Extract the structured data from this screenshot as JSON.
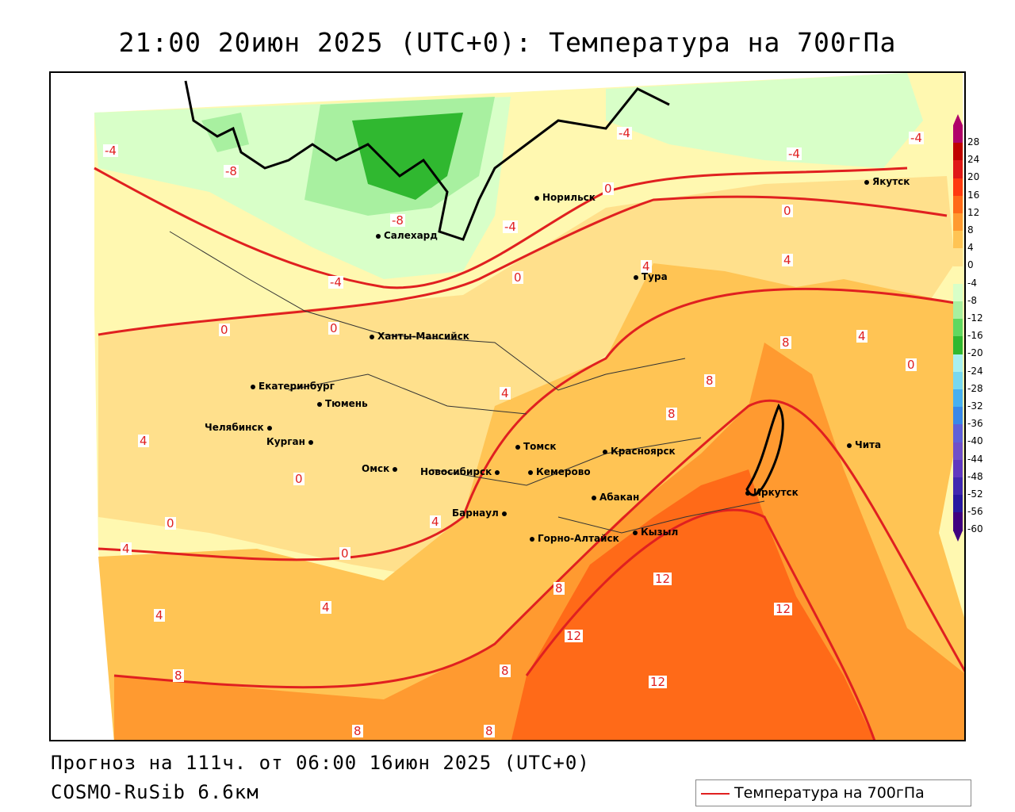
{
  "title": "21:00 20июн 2025 (UTC+0): Температура на 700гПа",
  "footer": {
    "forecast": "Прогноз на 111ч. от 06:00 16июн 2025 (UTC+0)",
    "model": "COSMO-RuSib 6.6км"
  },
  "legend": {
    "label": "Температура на 700гПа",
    "line_color": "#e02020"
  },
  "colorbar": {
    "labels": [
      "28",
      "24",
      "20",
      "16",
      "12",
      "8",
      "4",
      "0",
      "-4",
      "-8",
      "-12",
      "-16",
      "-20",
      "-24",
      "-28",
      "-32",
      "-36",
      "-40",
      "-44",
      "-48",
      "-52",
      "-56",
      "-60"
    ],
    "colors": [
      "#b0006a",
      "#c00000",
      "#e01818",
      "#ff3a10",
      "#ff6a18",
      "#ff9a30",
      "#ffc454",
      "#ffe08c",
      "#fff8b0",
      "#d8ffc8",
      "#a8f0a0",
      "#60d860",
      "#30b830",
      "#a8f0f0",
      "#78d8f0",
      "#48b0f0",
      "#3a88e8",
      "#6060d8",
      "#7050c8",
      "#6038c0",
      "#4028b0",
      "#2818a0",
      "#400080"
    ]
  },
  "cities": [
    {
      "name": "Норильск"
    },
    {
      "name": "Якутск"
    },
    {
      "name": "Салехард"
    },
    {
      "name": "Тура"
    },
    {
      "name": "Ханты-Мансийск"
    },
    {
      "name": "Екатеринбург"
    },
    {
      "name": "Тюмень"
    },
    {
      "name": "Челябинск"
    },
    {
      "name": "Курган"
    },
    {
      "name": "Омск"
    },
    {
      "name": "Томск"
    },
    {
      "name": "Красноярск"
    },
    {
      "name": "Новосибирск"
    },
    {
      "name": "Кемерово"
    },
    {
      "name": "Абакан"
    },
    {
      "name": "Иркутск"
    },
    {
      "name": "Барнаул"
    },
    {
      "name": "Кызыл"
    },
    {
      "name": "Горно-Алтайск"
    },
    {
      "name": "Чита"
    }
  ],
  "isolines": [
    "-4",
    "-8",
    "-4",
    "-4",
    "-4",
    "0",
    "0",
    "-8",
    "-4",
    "0",
    "4",
    "-4",
    "0",
    "0",
    "4",
    "4",
    "8",
    "8",
    "8",
    "4",
    "0",
    "4",
    "0",
    "0",
    "4",
    "0",
    "4",
    "4",
    "8",
    "12",
    "12",
    "12",
    "12",
    "8",
    "8",
    "8",
    "8",
    "4"
  ]
}
